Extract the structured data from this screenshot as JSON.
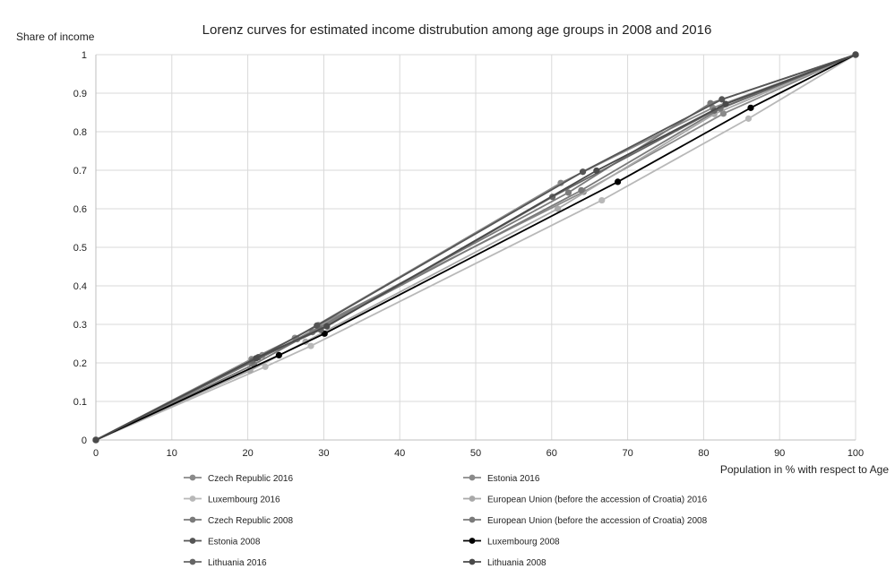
{
  "chart_data": {
    "type": "line",
    "title": "Lorenz curves for estimated income distrubution among age groups in 2008 and 2016",
    "xlabel": "Population in % with respect to Age",
    "ylabel": "Share of income",
    "xlim": [
      0,
      100
    ],
    "ylim": [
      0,
      1
    ],
    "x_ticks": [
      "0",
      "10",
      "20",
      "30",
      "40",
      "50",
      "60",
      "70",
      "80",
      "90",
      "100"
    ],
    "y_ticks": [
      "0",
      "0.1",
      "0.2",
      "0.3",
      "0.4",
      "0.5",
      "0.6",
      "0.7",
      "0.8",
      "0.9",
      "1"
    ],
    "grid": true,
    "legend_position": "bottom",
    "series": [
      {
        "name": "Czech Republic 2016",
        "color": "#8a8a8a",
        "points": [
          [
            0,
            0
          ],
          [
            20.5,
            0.21
          ],
          [
            26.2,
            0.265
          ],
          [
            61.2,
            0.667
          ],
          [
            81.2,
            0.862
          ],
          [
            100,
            1
          ]
        ]
      },
      {
        "name": "Estonia 2016",
        "color": "#8a8a8a",
        "points": [
          [
            0,
            0
          ],
          [
            21.9,
            0.22
          ],
          [
            29.3,
            0.298
          ],
          [
            64.2,
            0.644
          ],
          [
            82.6,
            0.847
          ],
          [
            100,
            1
          ]
        ]
      },
      {
        "name": "Luxembourg 2016",
        "color": "#b8b8b8",
        "points": [
          [
            0,
            0
          ],
          [
            22.3,
            0.19
          ],
          [
            28.3,
            0.244
          ],
          [
            66.6,
            0.622
          ],
          [
            85.9,
            0.834
          ],
          [
            100,
            1
          ]
        ]
      },
      {
        "name": "European Union (before the accession of Croatia) 2016",
        "color": "#a9a9a9",
        "points": [
          [
            0,
            0
          ],
          [
            20.3,
            0.18
          ],
          [
            27.6,
            0.255
          ],
          [
            60.8,
            0.6
          ],
          [
            81.4,
            0.846
          ],
          [
            100,
            1
          ]
        ]
      },
      {
        "name": "Czech Republic 2008",
        "color": "#7a7a7a",
        "points": [
          [
            0,
            0
          ],
          [
            20.4,
            0.2
          ],
          [
            26.5,
            0.262
          ],
          [
            62.2,
            0.642
          ],
          [
            80.9,
            0.874
          ],
          [
            100,
            1
          ]
        ]
      },
      {
        "name": "European Union (before the accession of Croatia) 2008",
        "color": "#7a7a7a",
        "points": [
          [
            0,
            0
          ],
          [
            20.8,
            0.196
          ],
          [
            28.5,
            0.28
          ],
          [
            63.9,
            0.648
          ],
          [
            82.2,
            0.86
          ],
          [
            100,
            1
          ]
        ]
      },
      {
        "name": "Estonia 2008",
        "color": "#555555",
        "points": [
          [
            0,
            0
          ],
          [
            21.4,
            0.215
          ],
          [
            29.1,
            0.297
          ],
          [
            64.1,
            0.696
          ],
          [
            82.4,
            0.884
          ],
          [
            100,
            1
          ]
        ]
      },
      {
        "name": "Luxembourg 2008",
        "color": "#000000",
        "points": [
          [
            0,
            0
          ],
          [
            24.1,
            0.22
          ],
          [
            30.1,
            0.276
          ],
          [
            68.7,
            0.67
          ],
          [
            86.2,
            0.862
          ],
          [
            100,
            1
          ]
        ]
      },
      {
        "name": "Lithuania 2016",
        "color": "#666666",
        "points": [
          [
            0,
            0
          ],
          [
            20.6,
            0.205
          ],
          [
            29.6,
            0.286
          ],
          [
            60.1,
            0.631
          ],
          [
            81.4,
            0.855
          ],
          [
            100,
            1
          ]
        ]
      },
      {
        "name": "Lithuania 2008",
        "color": "#4a4a4a",
        "points": [
          [
            0,
            0
          ],
          [
            21.1,
            0.212
          ],
          [
            30.4,
            0.295
          ],
          [
            65.9,
            0.699
          ],
          [
            82.9,
            0.872
          ],
          [
            100,
            1
          ]
        ]
      }
    ]
  }
}
